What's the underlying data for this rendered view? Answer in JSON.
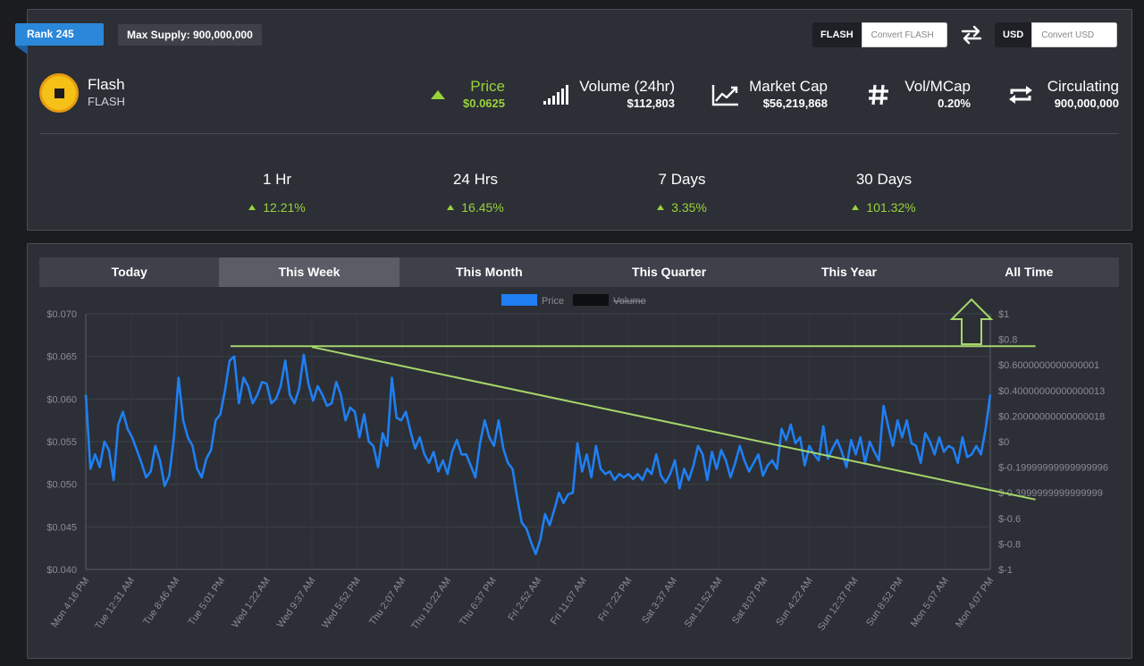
{
  "header": {
    "rank": "Rank 245",
    "max_supply": "Max Supply: 900,000,000"
  },
  "converter": {
    "from_code": "FLASH",
    "from_placeholder": "Convert FLASH",
    "to_code": "USD",
    "to_placeholder": "Convert USD"
  },
  "coin": {
    "name": "Flash",
    "symbol": "FLASH"
  },
  "stats": {
    "price": {
      "label": "Price",
      "value": "$0.0625"
    },
    "volume": {
      "label": "Volume (24hr)",
      "value": "$112,803"
    },
    "market_cap": {
      "label": "Market Cap",
      "value": "$56,219,868"
    },
    "vol_mcap": {
      "label": "Vol/MCap",
      "value": "0.20%"
    },
    "circulating": {
      "label": "Circulating",
      "value": "900,000,000"
    }
  },
  "periods": [
    {
      "label": "1 Hr",
      "value": "12.21%"
    },
    {
      "label": "24 Hrs",
      "value": "16.45%"
    },
    {
      "label": "7 Days",
      "value": "3.35%"
    },
    {
      "label": "30 Days",
      "value": "101.32%"
    }
  ],
  "tabs": [
    "Today",
    "This Week",
    "This Month",
    "This Quarter",
    "This Year",
    "All Time"
  ],
  "active_tab": "This Week",
  "colors": {
    "accent_green": "#9ad23a",
    "price_line": "#1f7ff2",
    "rank_blue": "#2b87d9",
    "trend_line": "#a6d66b"
  },
  "chart_data": {
    "type": "line",
    "legend": [
      "Price",
      "Volume"
    ],
    "legend_placement": "top-center",
    "ylim_left": [
      0.04,
      0.07
    ],
    "left_ticks": [
      "$0.070",
      "$0.065",
      "$0.060",
      "$0.055",
      "$0.050",
      "$0.045",
      "$0.040"
    ],
    "ylim_right": [
      -1,
      1
    ],
    "right_ticks": [
      "$1",
      "$0.8",
      "$0.6000000000000001",
      "$0.40000000000000013",
      "$0.20000000000000018",
      "$0",
      "$-0.19999999999999996",
      "$-0.3999999999999999",
      "$-0.6",
      "$-0.8",
      "$-1"
    ],
    "x_ticks": [
      "Mon 4:16 PM",
      "Tue 12:31 AM",
      "Tue 8:46 AM",
      "Tue 5:01 PM",
      "Wed 1:22 AM",
      "Wed 9:37 AM",
      "Wed 5:52 PM",
      "Thu 2:07 AM",
      "Thu 10:22 AM",
      "Thu 6:37 PM",
      "Fri 2:52 AM",
      "Fri 11:07 AM",
      "Fri 7:22 PM",
      "Sat 3:37 AM",
      "Sat 11:52 AM",
      "Sat 8:07 PM",
      "Sun 4:22 AM",
      "Sun 12:37 PM",
      "Sun 8:52 PM",
      "Mon 5:07 AM",
      "Mon 4:07 PM"
    ],
    "grid": true,
    "series": [
      {
        "name": "Price",
        "x_range": [
          0,
          20
        ],
        "values": [
          0.0605,
          0.0518,
          0.0535,
          0.052,
          0.055,
          0.054,
          0.0505,
          0.057,
          0.0585,
          0.0565,
          0.0555,
          0.054,
          0.0525,
          0.0508,
          0.0515,
          0.0545,
          0.0528,
          0.0498,
          0.051,
          0.0555,
          0.0625,
          0.0575,
          0.0555,
          0.0545,
          0.0518,
          0.0508,
          0.053,
          0.054,
          0.0575,
          0.0582,
          0.061,
          0.0645,
          0.065,
          0.0595,
          0.0625,
          0.0615,
          0.0595,
          0.0605,
          0.062,
          0.0618,
          0.0595,
          0.06,
          0.0615,
          0.0645,
          0.0605,
          0.0595,
          0.0612,
          0.0652,
          0.0618,
          0.0598,
          0.0615,
          0.0605,
          0.0592,
          0.0595,
          0.062,
          0.0605,
          0.0575,
          0.059,
          0.0585,
          0.0555,
          0.0582,
          0.055,
          0.0545,
          0.052,
          0.056,
          0.0545,
          0.0625,
          0.0578,
          0.0575,
          0.0585,
          0.0562,
          0.0542,
          0.0555,
          0.0535,
          0.0525,
          0.0538,
          0.0515,
          0.0528,
          0.0512,
          0.0538,
          0.0552,
          0.0535,
          0.0535,
          0.0522,
          0.0508,
          0.0548,
          0.0575,
          0.0555,
          0.0545,
          0.0575,
          0.0542,
          0.0525,
          0.0518,
          0.0485,
          0.0455,
          0.0448,
          0.0432,
          0.0418,
          0.0435,
          0.0465,
          0.0452,
          0.047,
          0.049,
          0.0478,
          0.0488,
          0.049,
          0.0548,
          0.0515,
          0.0535,
          0.0508,
          0.0545,
          0.0518,
          0.0512,
          0.0515,
          0.0505,
          0.0512,
          0.0508,
          0.0512,
          0.0506,
          0.0512,
          0.0505,
          0.0518,
          0.0512,
          0.0535,
          0.051,
          0.0502,
          0.0512,
          0.0528,
          0.0495,
          0.0518,
          0.0505,
          0.0522,
          0.0545,
          0.0535,
          0.0505,
          0.0538,
          0.0518,
          0.054,
          0.0528,
          0.0508,
          0.0525,
          0.0545,
          0.0528,
          0.0515,
          0.0525,
          0.0535,
          0.051,
          0.0522,
          0.0528,
          0.0518,
          0.0565,
          0.0552,
          0.057,
          0.0548,
          0.0555,
          0.0522,
          0.0545,
          0.0535,
          0.0528,
          0.0568,
          0.053,
          0.0542,
          0.0552,
          0.0538,
          0.052,
          0.0552,
          0.0535,
          0.0555,
          0.0525,
          0.055,
          0.0538,
          0.0528,
          0.0592,
          0.0568,
          0.0545,
          0.0575,
          0.0555,
          0.0575,
          0.0548,
          0.0545,
          0.0525,
          0.056,
          0.055,
          0.0535,
          0.0555,
          0.0538,
          0.0545,
          0.0542,
          0.0525,
          0.0555,
          0.0532,
          0.0535,
          0.0545,
          0.0535,
          0.0565,
          0.0605
        ]
      }
    ],
    "trend_lines": [
      {
        "from": [
          3.2,
          0.0662
        ],
        "to": [
          21.0,
          0.0662
        ]
      },
      {
        "from": [
          5.0,
          0.0661
        ],
        "to": [
          21.0,
          0.0482
        ]
      }
    ]
  }
}
